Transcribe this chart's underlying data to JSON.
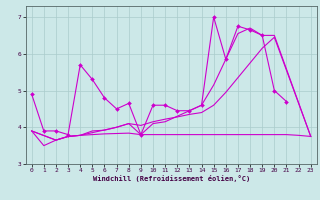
{
  "title": "",
  "xlabel": "Windchill (Refroidissement éolien,°C)",
  "bg_color": "#cce8e8",
  "grid_color": "#aacccc",
  "line_color": "#cc00cc",
  "xlim": [
    -0.5,
    23.5
  ],
  "ylim": [
    3.0,
    7.3
  ],
  "yticks": [
    3,
    4,
    5,
    6,
    7
  ],
  "xticks": [
    0,
    1,
    2,
    3,
    4,
    5,
    6,
    7,
    8,
    9,
    10,
    11,
    12,
    13,
    14,
    15,
    16,
    17,
    18,
    19,
    20,
    21,
    22,
    23
  ],
  "series": [
    {
      "x": [
        0,
        1,
        2,
        3,
        4,
        5,
        6,
        7,
        8,
        9,
        10,
        11,
        12,
        13,
        14,
        15,
        16,
        17,
        18,
        19,
        20,
        21
      ],
      "y": [
        4.9,
        3.9,
        3.9,
        3.8,
        5.7,
        5.3,
        4.8,
        4.5,
        4.65,
        3.8,
        4.6,
        4.6,
        4.45,
        4.45,
        4.6,
        7.0,
        5.85,
        6.75,
        6.65,
        6.5,
        5.0,
        4.7
      ],
      "marker": "D",
      "markersize": 2.5
    },
    {
      "x": [
        0,
        1,
        2,
        3,
        4,
        5,
        6,
        7,
        8,
        9,
        10,
        11,
        12,
        13,
        14,
        15,
        16,
        17,
        18,
        19,
        20,
        21,
        22,
        23
      ],
      "y": [
        3.9,
        3.5,
        3.65,
        3.75,
        3.78,
        3.8,
        3.82,
        3.83,
        3.84,
        3.8,
        3.8,
        3.8,
        3.8,
        3.8,
        3.8,
        3.8,
        3.8,
        3.8,
        3.8,
        3.8,
        3.8,
        3.8,
        3.78,
        3.75
      ],
      "marker": null,
      "markersize": 0
    },
    {
      "x": [
        0,
        2,
        3,
        4,
        5,
        6,
        7,
        8,
        9,
        10,
        11,
        12,
        13,
        14,
        15,
        16,
        17,
        18,
        19,
        20,
        23
      ],
      "y": [
        3.9,
        3.65,
        3.75,
        3.78,
        3.9,
        3.92,
        4.0,
        4.1,
        4.05,
        4.15,
        4.22,
        4.28,
        4.35,
        4.4,
        4.6,
        4.95,
        5.35,
        5.75,
        6.15,
        6.45,
        3.75
      ],
      "marker": null,
      "markersize": 0
    },
    {
      "x": [
        0,
        2,
        3,
        4,
        7,
        8,
        9,
        10,
        11,
        14,
        15,
        16,
        17,
        18,
        19,
        20,
        23
      ],
      "y": [
        3.9,
        3.65,
        3.75,
        3.78,
        4.0,
        4.1,
        3.8,
        4.1,
        4.15,
        4.6,
        5.15,
        5.85,
        6.55,
        6.7,
        6.5,
        6.5,
        3.75
      ],
      "marker": null,
      "markersize": 0
    }
  ]
}
